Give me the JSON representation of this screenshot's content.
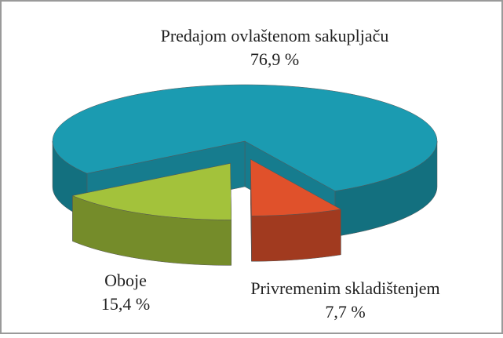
{
  "chart_data": {
    "type": "pie",
    "categories": [
      "Predajom ovlaštenom sakupljaču",
      "Oboje",
      "Privremenim skladištenjem"
    ],
    "values": [
      76.9,
      15.4,
      7.7
    ],
    "value_labels": [
      "76,9 %",
      "15,4 %",
      "7,7 %"
    ],
    "colors": [
      "#1b9bb1",
      "#a3c23b",
      "#e0512b"
    ]
  }
}
